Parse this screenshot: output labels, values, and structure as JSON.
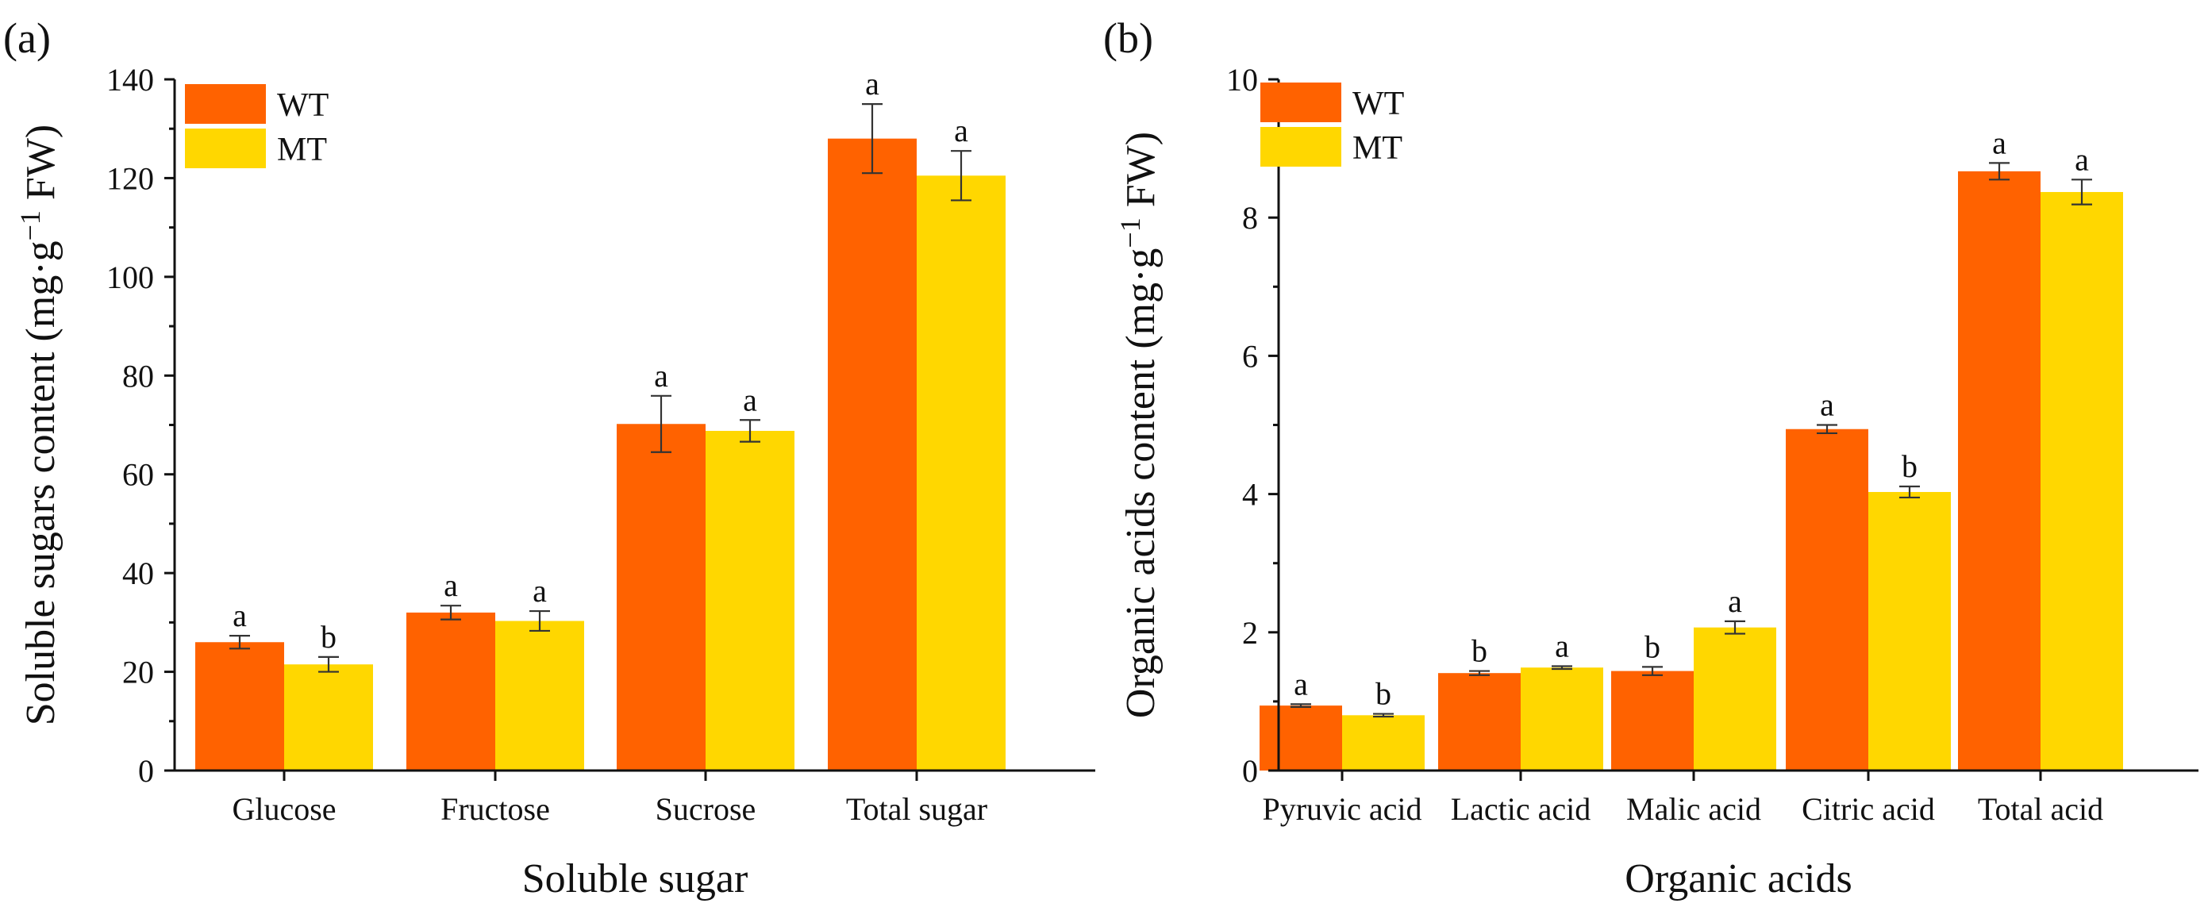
{
  "colors": {
    "WT": "#FF6200",
    "MT": "#FFD700",
    "axis": "#111111",
    "error_bar": "#333333"
  },
  "chart_data": [
    {
      "panel_label": "(a)",
      "type": "bar",
      "title": "",
      "xlabel": "Soluble sugar",
      "ylabel_main": "Soluble sugars content (mg·g",
      "ylabel_sup": "−1",
      "ylabel_end": " FW)",
      "ylim": [
        0,
        140
      ],
      "yticks": [
        0,
        20,
        40,
        60,
        80,
        100,
        120,
        140
      ],
      "legend_position": "top-left",
      "categories": [
        "Glucose",
        "Fructose",
        "Sucrose",
        "Total sugar"
      ],
      "series": [
        {
          "name": "WT",
          "color": "#FF6200",
          "values": [
            26,
            32,
            70.2,
            128
          ],
          "errors": [
            1.3,
            1.4,
            5.7,
            7
          ],
          "significance": [
            "a",
            "a",
            "a",
            "a"
          ]
        },
        {
          "name": "MT",
          "color": "#FFD700",
          "values": [
            21.5,
            30.3,
            68.8,
            120.5
          ],
          "errors": [
            1.5,
            2,
            2.2,
            5
          ],
          "significance": [
            "b",
            "a",
            "a",
            "a"
          ]
        }
      ]
    },
    {
      "panel_label": "(b)",
      "type": "bar",
      "title": "",
      "xlabel": "Organic acids",
      "ylabel_main": "Organic acids content (mg·g",
      "ylabel_sup": "−1",
      "ylabel_end": " FW)",
      "ylim": [
        0,
        10
      ],
      "yticks": [
        0,
        2,
        4,
        6,
        8,
        10
      ],
      "legend_position": "top-left",
      "categories": [
        "Pyruvic acid",
        "Lactic acid",
        "Malic acid",
        "Citric acid",
        "Total acid"
      ],
      "series": [
        {
          "name": "WT",
          "color": "#FF6200",
          "values": [
            0.94,
            1.41,
            1.44,
            4.94,
            8.67
          ],
          "errors": [
            0.02,
            0.03,
            0.06,
            0.06,
            0.12
          ],
          "significance": [
            "a",
            "b",
            "b",
            "a",
            "a"
          ]
        },
        {
          "name": "MT",
          "color": "#FFD700",
          "values": [
            0.8,
            1.49,
            2.07,
            4.03,
            8.37
          ],
          "errors": [
            0.02,
            0.02,
            0.09,
            0.08,
            0.18
          ],
          "significance": [
            "b",
            "a",
            "a",
            "b",
            "a"
          ]
        }
      ]
    }
  ]
}
